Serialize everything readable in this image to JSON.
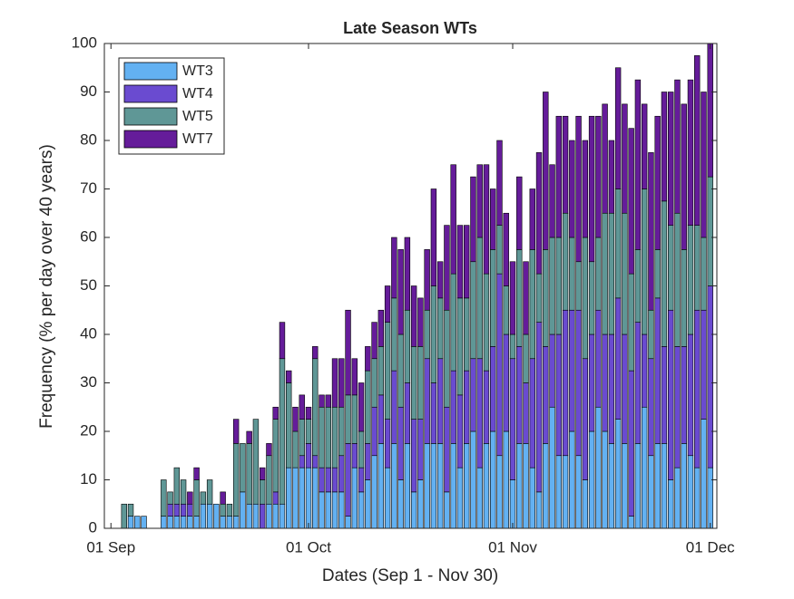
{
  "chart_data": {
    "type": "stacked_bar",
    "title": "Late Season WTs",
    "x_label": "Dates (Sep 1 - Nov 30)",
    "y_label": "Frequency (% per day over 40 years)",
    "x": [
      1,
      2,
      3,
      4,
      5,
      6,
      7,
      8,
      9,
      10,
      11,
      12,
      13,
      14,
      15,
      16,
      17,
      18,
      19,
      20,
      21,
      22,
      23,
      24,
      25,
      26,
      27,
      28,
      29,
      30,
      31,
      32,
      33,
      34,
      35,
      36,
      37,
      38,
      39,
      40,
      41,
      42,
      43,
      44,
      45,
      46,
      47,
      48,
      49,
      50,
      51,
      52,
      53,
      54,
      55,
      56,
      57,
      58,
      59,
      60,
      61,
      62,
      63,
      64,
      65,
      66,
      67,
      68,
      69,
      70,
      71,
      72,
      73,
      74,
      75,
      76,
      77,
      78,
      79,
      80,
      81,
      82,
      83,
      84,
      85,
      86,
      87,
      88,
      89,
      90,
      91
    ],
    "xlim": [
      -1,
      92
    ],
    "xticks": [
      {
        "value": 0,
        "label": "01 Sep"
      },
      {
        "value": 30,
        "label": "01 Oct"
      },
      {
        "value": 61,
        "label": "01 Nov"
      },
      {
        "value": 91,
        "label": "01 Dec"
      }
    ],
    "ylim": [
      0,
      100
    ],
    "yticks": [
      0,
      10,
      20,
      30,
      40,
      50,
      60,
      70,
      80,
      90,
      100
    ],
    "grid": false,
    "legend": "upper-left",
    "series": [
      {
        "name": "WT3",
        "color": "#63b1f2",
        "values": [
          0,
          0,
          2.5,
          2.5,
          2.5,
          0,
          0,
          2.5,
          2.5,
          2.5,
          2.5,
          2.5,
          2.5,
          5,
          5,
          5,
          2.5,
          2.5,
          2.5,
          7.5,
          5,
          5,
          0,
          5,
          5,
          5,
          12.5,
          12.5,
          12.5,
          12.5,
          12.5,
          7.5,
          7.5,
          7.5,
          7.5,
          2.5,
          12.5,
          7.5,
          10,
          15,
          17.5,
          12.5,
          17.5,
          10,
          17.5,
          7.5,
          10,
          17.5,
          17.5,
          17.5,
          7.5,
          17.5,
          12.5,
          17.5,
          20,
          12.5,
          17.5,
          20,
          15,
          20,
          10,
          17.5,
          17.5,
          12.5,
          7.5,
          17.5,
          25,
          15,
          15,
          20,
          15,
          10,
          20,
          25,
          20,
          17.5,
          22.5,
          17.5,
          2.5,
          17.5,
          25,
          15,
          17.5,
          17.5,
          10,
          12.5,
          17.5,
          15,
          12.5,
          22.5,
          12.5
        ]
      },
      {
        "name": "WT4",
        "color": "#6a4bd0",
        "values": [
          0,
          0,
          0,
          0,
          0,
          0,
          0,
          0,
          2.5,
          2.5,
          2.5,
          2.5,
          0,
          0,
          0,
          0,
          0,
          0,
          0,
          0,
          0,
          0,
          5,
          0,
          2.5,
          0,
          0,
          0,
          2.5,
          5,
          2.5,
          5,
          5,
          5,
          7.5,
          15,
          5,
          5,
          7.5,
          10,
          10,
          10,
          15,
          15,
          12.5,
          15,
          12.5,
          17.5,
          12.5,
          17.5,
          17.5,
          15,
          15,
          15,
          15,
          22.5,
          15,
          17.5,
          37.5,
          20,
          25,
          20,
          12.5,
          22.5,
          35,
          20,
          15,
          25,
          30,
          25,
          30,
          25,
          20,
          20,
          20,
          22.5,
          25,
          22.5,
          30,
          25,
          15,
          20,
          30,
          20,
          35,
          25,
          20,
          25,
          32.5,
          22.5,
          37.5
        ]
      },
      {
        "name": "WT5",
        "color": "#5f9796",
        "values": [
          0,
          5,
          2.5,
          0,
          0,
          0,
          0,
          7.5,
          2.5,
          7.5,
          5,
          0,
          7.5,
          2.5,
          5,
          0,
          2.5,
          2.5,
          15,
          10,
          12.5,
          17.5,
          5,
          10,
          15,
          30,
          17.5,
          7.5,
          7.5,
          5,
          20,
          12.5,
          12.5,
          12.5,
          10,
          10,
          10,
          7.5,
          15,
          10,
          10,
          20,
          15,
          15,
          15,
          15,
          15,
          10,
          20,
          12.5,
          20,
          20,
          20,
          15,
          20,
          25,
          20,
          20,
          10,
          10,
          5,
          20,
          10,
          22.5,
          10,
          20,
          20,
          20,
          20,
          15,
          10,
          25,
          15,
          15,
          25,
          25,
          22.5,
          25,
          20,
          15,
          30,
          10,
          10,
          30,
          17.5,
          27.5,
          20,
          22.5,
          17.5,
          15,
          22.5
        ]
      },
      {
        "name": "WT7",
        "color": "#651c9a",
        "values": [
          0,
          0,
          0,
          0,
          0,
          0,
          0,
          0,
          0,
          0,
          0,
          2.5,
          2.5,
          0,
          0,
          0,
          2.5,
          0,
          5,
          0,
          2.5,
          0,
          2.5,
          2.5,
          2.5,
          7.5,
          2.5,
          5,
          5,
          2.5,
          2.5,
          2.5,
          2.5,
          10,
          10,
          17.5,
          7.5,
          10,
          5,
          7.5,
          7.5,
          7.5,
          12.5,
          17.5,
          15,
          12.5,
          10,
          12.5,
          20,
          7.5,
          17.5,
          22.5,
          15,
          15,
          17.5,
          15,
          22.5,
          12.5,
          17.5,
          15,
          15,
          15,
          15,
          12.5,
          25,
          32.5,
          15,
          25,
          20,
          20,
          30,
          20,
          30,
          25,
          22.5,
          15,
          25,
          22.5,
          30,
          35,
          17.5,
          32.5,
          27.5,
          22.5,
          27.5,
          27.5,
          30,
          30,
          35,
          30,
          27.5
        ]
      }
    ]
  }
}
